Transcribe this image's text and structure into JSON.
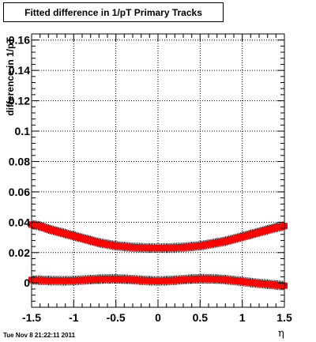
{
  "timestamp": "Tue Nov  8 21:22:11 2011",
  "chart_data": {
    "type": "scatter",
    "title": "Fitted difference in 1/pT  Primary Tracks",
    "xlabel": "η",
    "ylabel": "difference in 1/pT",
    "xlim": [
      -1.5,
      1.5
    ],
    "ylim": [
      -0.016,
      0.164
    ],
    "x_ticks": [
      -1.5,
      -1,
      -0.5,
      0,
      0.5,
      1,
      1.5
    ],
    "x_tick_labels": [
      "-1.5",
      "-1",
      "-0.5",
      "0",
      "0.5",
      "1",
      "1.5"
    ],
    "y_ticks": [
      0,
      0.02,
      0.04,
      0.06,
      0.08,
      0.1,
      0.12,
      0.14,
      0.16
    ],
    "y_tick_labels": [
      "0",
      "0.02",
      "0.04",
      "0.06",
      "0.08",
      "0.1",
      "0.12",
      "0.14",
      "0.16"
    ],
    "grid": true,
    "legend": "none",
    "marker_color": "#ff0000",
    "series": [
      {
        "x": [
          -1.5,
          -1.4,
          -1.3,
          -1.2,
          -1.1,
          -1.0,
          -0.9,
          -0.8,
          -0.7,
          -0.6,
          -0.5,
          -0.4,
          -0.3,
          -0.2,
          -0.1,
          0.0,
          0.1,
          0.2,
          0.3,
          0.4,
          0.5,
          0.6,
          0.7,
          0.8,
          0.9,
          1.0,
          1.1,
          1.2,
          1.3,
          1.4,
          1.5
        ],
        "values": [
          0.0385,
          0.0375,
          0.0355,
          0.034,
          0.0325,
          0.031,
          0.0295,
          0.028,
          0.0265,
          0.0255,
          0.0245,
          0.024,
          0.0235,
          0.0232,
          0.023,
          0.023,
          0.023,
          0.0232,
          0.0235,
          0.024,
          0.0245,
          0.0255,
          0.0265,
          0.0275,
          0.029,
          0.0305,
          0.032,
          0.0335,
          0.035,
          0.0365,
          0.0375
        ]
      },
      {
        "x": [
          -1.5,
          -1.4,
          -1.3,
          -1.2,
          -1.1,
          -1.0,
          -0.9,
          -0.8,
          -0.7,
          -0.6,
          -0.5,
          -0.4,
          -0.3,
          -0.2,
          -0.1,
          0.0,
          0.1,
          0.2,
          0.3,
          0.4,
          0.5,
          0.6,
          0.7,
          0.8,
          0.9,
          1.0,
          1.1,
          1.2,
          1.3,
          1.4,
          1.5
        ],
        "values": [
          0.002,
          0.0018,
          0.0016,
          0.0015,
          0.0014,
          0.0016,
          0.0019,
          0.0022,
          0.0025,
          0.0027,
          0.0027,
          0.0025,
          0.0022,
          0.0018,
          0.0015,
          0.0013,
          0.0015,
          0.0018,
          0.0022,
          0.0026,
          0.0028,
          0.0028,
          0.0026,
          0.0022,
          0.0016,
          0.001,
          0.0003,
          -0.0003,
          -0.0008,
          -0.0013,
          -0.0018
        ]
      }
    ]
  }
}
